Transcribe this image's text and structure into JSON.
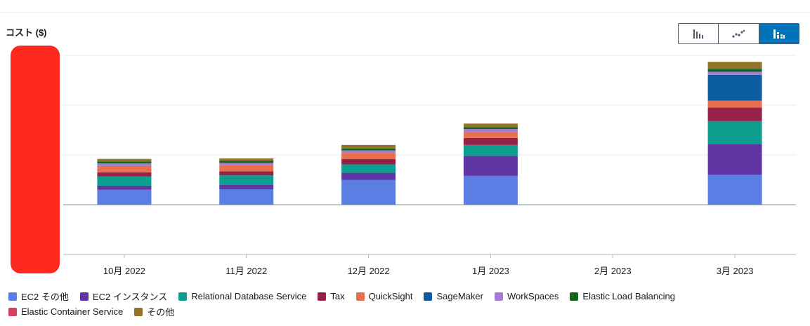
{
  "title": "コスト ($)",
  "view_toggle": {
    "options": [
      {
        "icon": "bar-chart-icon"
      },
      {
        "icon": "line-chart-icon"
      },
      {
        "icon": "stacked-bar-chart-icon",
        "active": true
      }
    ]
  },
  "chart_data": {
    "type": "bar",
    "stacked": true,
    "title": "コスト ($)",
    "xlabel": "",
    "ylabel": "",
    "grid": true,
    "legend_position": "bottom",
    "categories": [
      "10月 2022",
      "11月 2022",
      "12月 2022",
      "1月 2023",
      "2月 2023",
      "3月 2023"
    ],
    "ylim": [
      -1,
      3
    ],
    "series": [
      {
        "name": "EC2 その他",
        "color": "#5a7ee3",
        "values": [
          0.3,
          0.31,
          0.5,
          0.58,
          0,
          0.6
        ]
      },
      {
        "name": "EC2 インスタンス",
        "color": "#5e35a3",
        "values": [
          0.08,
          0.09,
          0.14,
          0.4,
          0,
          0.62
        ]
      },
      {
        "name": "Relational Database Service",
        "color": "#0d9e8f",
        "values": [
          0.19,
          0.19,
          0.17,
          0.22,
          0,
          0.46
        ]
      },
      {
        "name": "Tax",
        "color": "#962249",
        "values": [
          0.08,
          0.08,
          0.11,
          0.14,
          0,
          0.27
        ]
      },
      {
        "name": "QuickSight",
        "color": "#e7704f",
        "values": [
          0.13,
          0.12,
          0.12,
          0.12,
          0,
          0.14
        ]
      },
      {
        "name": "SageMaker",
        "color": "#0b5ca0",
        "values": [
          0,
          0,
          0,
          0,
          0,
          0.52
        ]
      },
      {
        "name": "WorkSpaces",
        "color": "#a57ad9",
        "values": [
          0.05,
          0.05,
          0.05,
          0.06,
          0,
          0.06
        ]
      },
      {
        "name": "Elastic Load Balancing",
        "color": "#14641e",
        "values": [
          0.04,
          0.04,
          0.04,
          0.04,
          0,
          0.06
        ]
      },
      {
        "name": "Elastic Container Service",
        "color": "#d4415f",
        "values": [
          0,
          0,
          0,
          0,
          0,
          0
        ]
      },
      {
        "name": "その他",
        "color": "#93722a",
        "values": [
          0.05,
          0.05,
          0.07,
          0.07,
          0,
          0.14
        ]
      }
    ]
  }
}
